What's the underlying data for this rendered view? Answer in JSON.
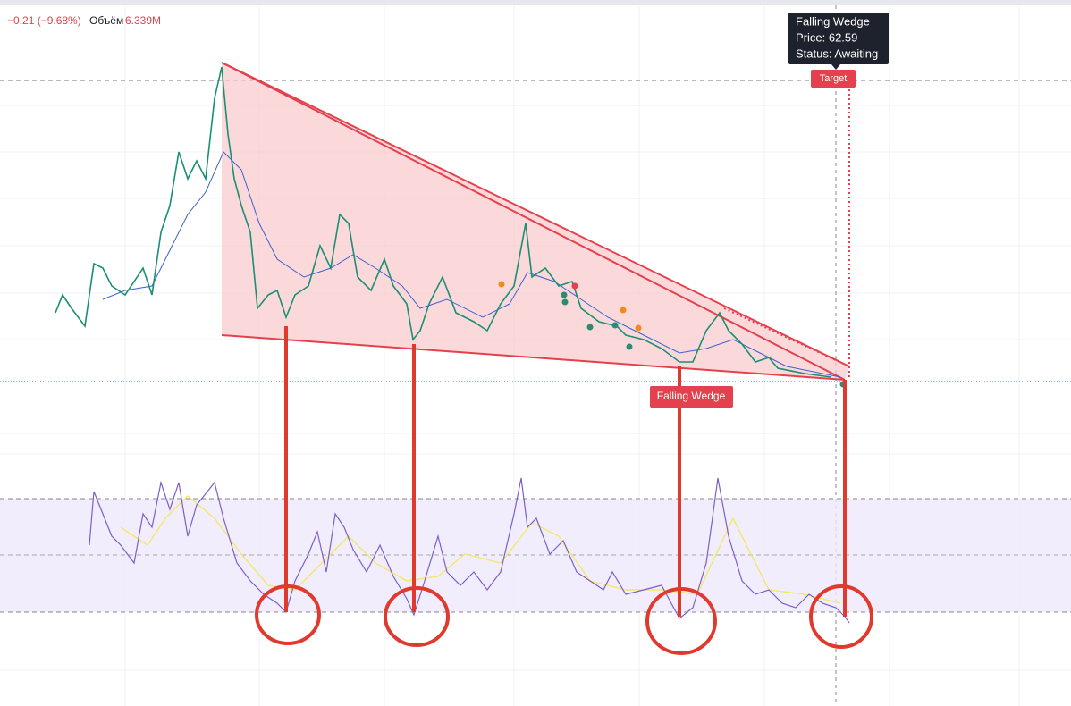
{
  "header": {
    "change": "−0.21 (−9.68%)",
    "volume_label": "Объём",
    "volume": "6.339M"
  },
  "tooltip": {
    "title": "Falling Wedge",
    "price": "Price: 62.59",
    "status": "Status: Awaiting"
  },
  "labels": {
    "target": "Target",
    "pattern": "Falling Wedge"
  }
}
